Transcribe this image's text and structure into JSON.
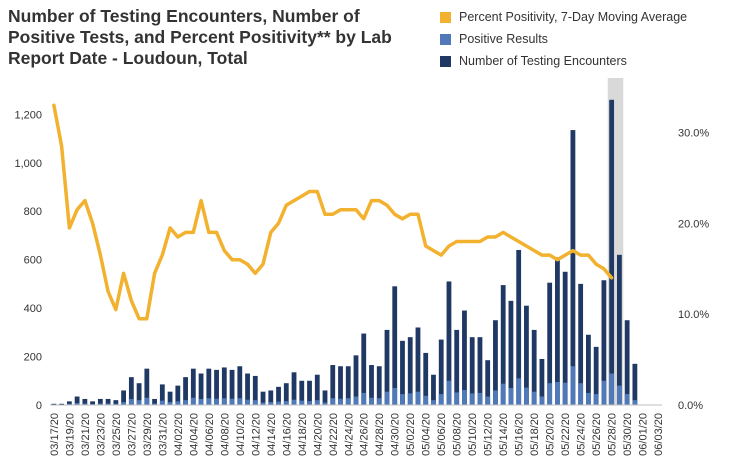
{
  "chart_data": {
    "type": "bar",
    "title": "Number of Testing Encounters, Number of Positive Tests, and Percent Positivity** by Lab Report Date - Loudoun, Total",
    "categories": [
      "03/17/20",
      "03/18/20",
      "03/19/20",
      "03/20/20",
      "03/21/20",
      "03/22/20",
      "03/23/20",
      "03/24/20",
      "03/25/20",
      "03/26/20",
      "03/27/20",
      "03/28/20",
      "03/29/20",
      "03/30/20",
      "03/31/20",
      "04/01/20",
      "04/02/20",
      "04/03/20",
      "04/04/20",
      "04/05/20",
      "04/06/20",
      "04/07/20",
      "04/08/20",
      "04/09/20",
      "04/10/20",
      "04/11/20",
      "04/12/20",
      "04/13/20",
      "04/14/20",
      "04/15/20",
      "04/16/20",
      "04/17/20",
      "04/18/20",
      "04/19/20",
      "04/20/20",
      "04/21/20",
      "04/22/20",
      "04/23/20",
      "04/24/20",
      "04/25/20",
      "04/26/20",
      "04/27/20",
      "04/28/20",
      "04/29/20",
      "04/30/20",
      "05/01/20",
      "05/02/20",
      "05/03/20",
      "05/04/20",
      "05/05/20",
      "05/06/20",
      "05/07/20",
      "05/08/20",
      "05/09/20",
      "05/10/20",
      "05/11/20",
      "05/12/20",
      "05/13/20",
      "05/14/20",
      "05/15/20",
      "05/16/20",
      "05/17/20",
      "05/18/20",
      "05/19/20",
      "05/20/20",
      "05/21/20",
      "05/22/20",
      "05/23/20",
      "05/24/20",
      "05/25/20",
      "05/26/20",
      "05/27/20",
      "05/28/20",
      "05/29/20",
      "05/30/20",
      "05/31/20",
      "06/01/20",
      "06/02/20",
      "06/03/20"
    ],
    "tick_labels": [
      "03/17/20",
      "03/19/20",
      "03/21/20",
      "03/23/20",
      "03/25/20",
      "03/27/20",
      "03/29/20",
      "03/31/20",
      "04/02/20",
      "04/04/20",
      "04/06/20",
      "04/08/20",
      "04/10/20",
      "04/12/20",
      "04/14/20",
      "04/16/20",
      "04/18/20",
      "04/20/20",
      "04/22/20",
      "04/24/20",
      "04/26/20",
      "04/28/20",
      "04/30/20",
      "05/02/20",
      "05/04/20",
      "05/06/20",
      "05/08/20",
      "05/10/20",
      "05/12/20",
      "05/14/20",
      "05/16/20",
      "05/18/20",
      "05/20/20",
      "05/22/20",
      "05/24/20",
      "05/26/20",
      "05/28/20",
      "05/30/20",
      "06/01/20",
      "06/03/20"
    ],
    "series": [
      {
        "name": "Number of Testing Encounters",
        "color": "#1f3864",
        "values": [
          5,
          5,
          15,
          35,
          25,
          15,
          25,
          25,
          20,
          60,
          115,
          90,
          150,
          25,
          85,
          55,
          80,
          115,
          150,
          130,
          150,
          145,
          155,
          145,
          160,
          130,
          120,
          55,
          60,
          75,
          90,
          135,
          100,
          100,
          125,
          60,
          165,
          160,
          160,
          205,
          295,
          165,
          160,
          310,
          490,
          265,
          280,
          320,
          215,
          125,
          270,
          510,
          310,
          390,
          280,
          280,
          185,
          350,
          495,
          430,
          640,
          410,
          310,
          190,
          505,
          610,
          550,
          1135,
          500,
          290,
          240,
          515,
          1260,
          620,
          350,
          170,
          0,
          0,
          0
        ]
      },
      {
        "name": "Positive Results",
        "color": "#4f79b8",
        "values": [
          2,
          2,
          5,
          8,
          6,
          4,
          6,
          6,
          5,
          12,
          25,
          20,
          30,
          6,
          18,
          12,
          15,
          20,
          30,
          25,
          28,
          26,
          28,
          26,
          28,
          22,
          20,
          10,
          12,
          14,
          16,
          22,
          18,
          16,
          20,
          10,
          28,
          26,
          28,
          35,
          50,
          30,
          28,
          55,
          70,
          45,
          48,
          55,
          38,
          20,
          45,
          100,
          52,
          62,
          48,
          50,
          35,
          60,
          88,
          70,
          110,
          72,
          55,
          35,
          90,
          95,
          92,
          160,
          90,
          50,
          45,
          100,
          130,
          80,
          45,
          20,
          0,
          0,
          0
        ]
      },
      {
        "name": "Percent Positivity, 7-Day Moving Average",
        "color": "#f2b12e",
        "values": [
          33.0,
          28.5,
          19.5,
          21.5,
          22.5,
          20.0,
          16.5,
          12.5,
          10.5,
          14.5,
          11.5,
          9.5,
          9.5,
          14.5,
          16.5,
          19.5,
          18.5,
          19.0,
          19.0,
          22.5,
          19.0,
          19.0,
          17.0,
          16.0,
          16.0,
          15.5,
          14.5,
          15.5,
          19.0,
          20.0,
          22.0,
          22.5,
          23.0,
          23.5,
          23.5,
          21.0,
          21.0,
          21.5,
          21.5,
          21.5,
          20.5,
          22.5,
          22.5,
          22.0,
          21.0,
          20.5,
          21.0,
          21.0,
          17.5,
          17.0,
          16.5,
          17.5,
          18.0,
          18.0,
          18.0,
          18.0,
          18.5,
          18.5,
          19.0,
          18.5,
          18.0,
          17.5,
          17.0,
          16.5,
          16.5,
          16.0,
          16.5,
          17.0,
          16.5,
          16.5,
          15.5,
          15.0,
          14.0,
          null,
          null,
          null,
          null,
          null,
          null
        ]
      }
    ],
    "y_left": {
      "ticks": [
        "0",
        "200",
        "400",
        "600",
        "800",
        "1,000",
        "1,200"
      ],
      "ylim": [
        0,
        1350
      ]
    },
    "y_right": {
      "ticks": [
        "0.0%",
        "10.0%",
        "20.0%",
        "30.0%"
      ],
      "ylim": [
        0,
        36
      ]
    },
    "shaded_from": "05/28/20",
    "shaded_to": "05/30/20",
    "legend_position": "top-right",
    "grid": false
  }
}
